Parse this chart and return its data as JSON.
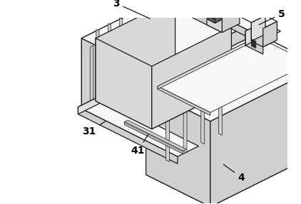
{
  "background_color": "#ffffff",
  "line_color": "#1a1a1a",
  "figsize": [
    4.22,
    2.87
  ],
  "dpi": 100,
  "lw": 0.9,
  "colors": {
    "top": "#f8f8f8",
    "left_face": "#e0e0e0",
    "right_face": "#d0d0d0",
    "inner_floor": "#e8e8e8",
    "inner_wall": "#d8d8d8",
    "dark": "#606060"
  }
}
